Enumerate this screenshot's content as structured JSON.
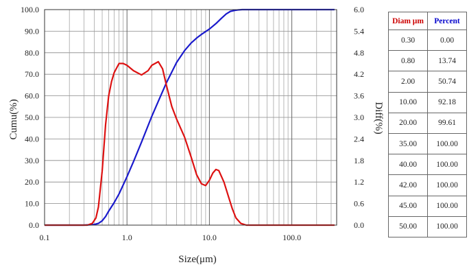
{
  "chart_data": {
    "type": "line",
    "xscale": "log",
    "xlim": [
      0.1,
      350
    ],
    "xticks": [
      "0.1",
      "1.0",
      "10.0",
      "100.0"
    ],
    "xlabel": "Size(μm)",
    "ylabel_left": "Cumu(%)",
    "ylabel_right": "Diff(%)",
    "ylim_left": [
      0,
      100
    ],
    "ylim_right": [
      0,
      6
    ],
    "yticks_left": [
      "0.0",
      "10.0",
      "20.0",
      "30.0",
      "40.0",
      "50.0",
      "60.0",
      "70.0",
      "80.0",
      "90.0",
      "100.0"
    ],
    "yticks_right": [
      "0.0",
      "0.6",
      "1.2",
      "1.8",
      "2.4",
      "3.0",
      "3.6",
      "4.2",
      "4.8",
      "5.4",
      "6.0"
    ],
    "grid": true,
    "series": [
      {
        "color": "#1a1acc",
        "axis": "left",
        "x": [
          0.1,
          0.3,
          0.4,
          0.45,
          0.5,
          0.55,
          0.6,
          0.7,
          0.8,
          1.0,
          1.2,
          1.5,
          2.0,
          2.5,
          3.0,
          4.0,
          5.0,
          6.0,
          7.0,
          8.0,
          10.0,
          12.0,
          14.0,
          16.0,
          18.0,
          20.0,
          22.0,
          25.0,
          30.0,
          35.0,
          40.0,
          50.0,
          100.0,
          330.0
        ],
        "y": [
          0,
          0,
          0.3,
          0.8,
          2.0,
          4.0,
          6.5,
          10.5,
          14.5,
          22.5,
          29.5,
          38.5,
          50.5,
          59.0,
          66.0,
          75.5,
          81.0,
          84.5,
          86.8,
          88.5,
          91.0,
          93.5,
          96.0,
          98.0,
          99.2,
          99.6,
          99.85,
          100,
          100,
          100,
          100,
          100,
          100,
          100
        ]
      },
      {
        "color": "#dd1111",
        "axis": "right",
        "x": [
          0.1,
          0.33,
          0.38,
          0.42,
          0.45,
          0.5,
          0.55,
          0.6,
          0.65,
          0.7,
          0.8,
          0.9,
          1.0,
          1.2,
          1.5,
          1.8,
          2.0,
          2.4,
          2.7,
          3.0,
          3.5,
          4.0,
          5.0,
          6.0,
          7.0,
          8.0,
          9.0,
          10.0,
          11.0,
          12.0,
          13.0,
          15.0,
          17.0,
          19.0,
          21.0,
          24.0,
          28.0,
          35.0,
          50.0,
          100.0,
          330.0
        ],
        "y": [
          0,
          0,
          0.05,
          0.2,
          0.5,
          1.5,
          2.8,
          3.6,
          4.0,
          4.25,
          4.5,
          4.5,
          4.45,
          4.3,
          4.18,
          4.3,
          4.45,
          4.55,
          4.35,
          3.9,
          3.3,
          2.95,
          2.45,
          1.9,
          1.4,
          1.15,
          1.1,
          1.25,
          1.45,
          1.55,
          1.52,
          1.2,
          0.8,
          0.45,
          0.2,
          0.05,
          0,
          0,
          0,
          0,
          0
        ]
      }
    ]
  },
  "table": {
    "headers": [
      "Diam μm",
      "Percent"
    ],
    "header_color": "#cc0000",
    "header2_color": "#0000cc",
    "rows": [
      [
        "0.30",
        "0.00"
      ],
      [
        "0.80",
        "13.74"
      ],
      [
        "2.00",
        "50.74"
      ],
      [
        "10.00",
        "92.18"
      ],
      [
        "20.00",
        "99.61"
      ],
      [
        "35.00",
        "100.00"
      ],
      [
        "40.00",
        "100.00"
      ],
      [
        "42.00",
        "100.00"
      ],
      [
        "45.00",
        "100.00"
      ],
      [
        "50.00",
        "100.00"
      ]
    ]
  }
}
